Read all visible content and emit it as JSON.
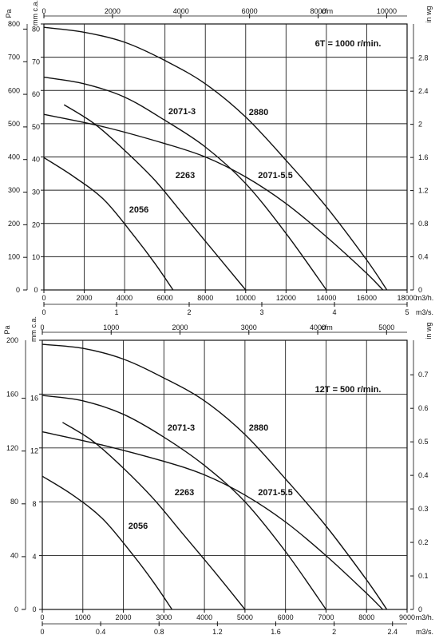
{
  "chart_data": [
    {
      "type": "line",
      "speed_label": "6T = 1000 r/min.",
      "units": {
        "pa": "Pa",
        "mmca": "mm c.a.",
        "inwg": "in wg",
        "cfm": "cfm",
        "m3h": "m3/h.",
        "m3s": "m3/s."
      },
      "axes": {
        "m3h": {
          "min": 0,
          "max": 18000,
          "ticks": [
            0,
            2000,
            4000,
            6000,
            8000,
            10000,
            12000,
            14000,
            16000,
            18000
          ]
        },
        "pa": {
          "min": 0,
          "max": 800,
          "ticks": [
            0,
            100,
            200,
            300,
            400,
            500,
            600,
            700,
            800
          ]
        },
        "mmca": {
          "ticks": [
            0,
            10,
            20,
            30,
            40,
            50,
            60,
            70,
            80
          ]
        },
        "inwg": {
          "ticks": [
            "0",
            "0.4",
            "0.8",
            "1.2",
            "1.6",
            "2",
            "2.4",
            "2.8"
          ]
        },
        "cfm": {
          "ticks": [
            "0",
            "2000",
            "4000",
            "6000",
            "8000",
            "10000"
          ]
        },
        "m3s": {
          "ticks": [
            "0",
            "1",
            "2",
            "3",
            "4",
            "5"
          ]
        }
      },
      "grid": true,
      "series": [
        {
          "name": "2056",
          "x": [
            0,
            1500,
            3000,
            4500,
            5500,
            6400
          ],
          "y": [
            398,
            340,
            270,
            160,
            80,
            0
          ]
        },
        {
          "name": "2263",
          "x": [
            1000,
            2500,
            4000,
            5500,
            7000,
            8500,
            10000
          ],
          "y": [
            557,
            500,
            420,
            330,
            220,
            110,
            0
          ]
        },
        {
          "name": "2071-3",
          "x": [
            0,
            2000,
            4000,
            6000,
            8000,
            10000,
            12000,
            14000
          ],
          "y": [
            640,
            620,
            580,
            510,
            430,
            320,
            170,
            0
          ]
        },
        {
          "name": "2071-5.5",
          "x": [
            0,
            3000,
            6000,
            8000,
            10000,
            12000,
            14000,
            16000,
            16800
          ],
          "y": [
            528,
            490,
            440,
            400,
            340,
            260,
            160,
            50,
            0
          ]
        },
        {
          "name": "2880",
          "x": [
            0,
            2000,
            4000,
            6000,
            8000,
            10000,
            12000,
            14000,
            16000,
            17000
          ],
          "y": [
            790,
            775,
            745,
            690,
            620,
            520,
            390,
            250,
            90,
            0
          ]
        }
      ]
    },
    {
      "type": "line",
      "speed_label": "12T = 500 r/min.",
      "units": {
        "pa": "Pa",
        "mmca": "mm c.a.",
        "inwg": "in wg",
        "cfm": "cfm",
        "m3h": "m3/h.",
        "m3s": "m3/s."
      },
      "axes": {
        "m3h": {
          "min": 0,
          "max": 9000,
          "ticks": [
            0,
            1000,
            2000,
            3000,
            4000,
            5000,
            6000,
            7000,
            8000,
            9000
          ]
        },
        "pa": {
          "min": 0,
          "max": 200,
          "ticks": [
            0,
            40,
            80,
            120,
            160,
            200
          ]
        },
        "mmca": {
          "ticks": [
            0,
            4,
            8,
            12,
            16
          ]
        },
        "inwg": {
          "ticks": [
            "0",
            "0.1",
            "0.2",
            "0.3",
            "0.4",
            "0.5",
            "0.6",
            "0.7"
          ]
        },
        "cfm": {
          "ticks": [
            "0",
            "1000",
            "2000",
            "3000",
            "4000",
            "5000"
          ]
        },
        "m3s": {
          "ticks": [
            "0",
            "0.4",
            "0.8",
            "1.2",
            "1.6",
            "2",
            "2.4"
          ]
        }
      },
      "grid": true,
      "series": [
        {
          "name": "2056",
          "x": [
            0,
            750,
            1500,
            2250,
            2750,
            3200
          ],
          "y": [
            99,
            85,
            67,
            40,
            20,
            0
          ]
        },
        {
          "name": "2263",
          "x": [
            500,
            1250,
            2000,
            2750,
            3500,
            4250,
            5000
          ],
          "y": [
            139,
            125,
            105,
            82,
            55,
            28,
            0
          ]
        },
        {
          "name": "2071-3",
          "x": [
            0,
            1000,
            2000,
            3000,
            4000,
            5000,
            6000,
            7000
          ],
          "y": [
            159,
            155,
            145,
            128,
            107,
            80,
            43,
            0
          ]
        },
        {
          "name": "2071-5.5",
          "x": [
            0,
            1500,
            3000,
            4000,
            5000,
            6000,
            7000,
            8000,
            8400
          ],
          "y": [
            132,
            122,
            110,
            100,
            85,
            65,
            40,
            12,
            0
          ]
        },
        {
          "name": "2880",
          "x": [
            0,
            1000,
            2000,
            3000,
            4000,
            5000,
            6000,
            7000,
            8000,
            8500
          ],
          "y": [
            197,
            194,
            186,
            172,
            155,
            130,
            97,
            62,
            22,
            0
          ]
        }
      ]
    }
  ]
}
